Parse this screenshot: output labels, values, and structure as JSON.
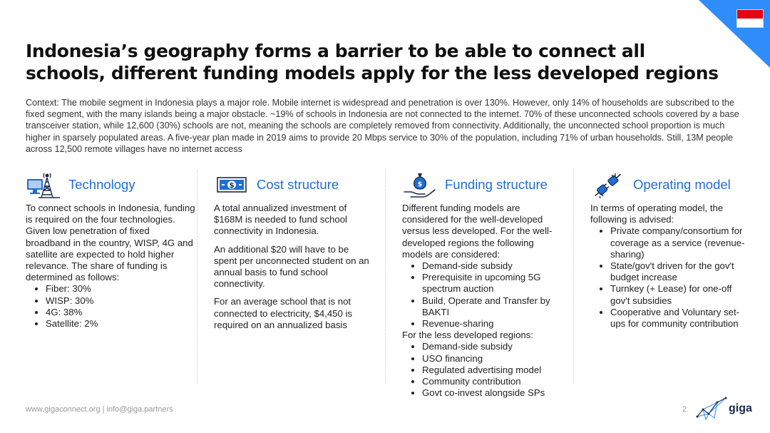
{
  "theme": {
    "accent": "#1f6fd1",
    "corner": "#2f8dfa",
    "flag_red": "#e70011",
    "flag_white": "#ffffff",
    "navy": "#1a2b4c"
  },
  "header": {
    "title": "Indonesia’s geography forms a barrier to be able to connect all schools, different funding models apply for the less developed regions"
  },
  "context": "Context: The mobile segment in Indonesia plays a major role. Mobile internet is widespread and penetration is over 130%. However, only 14% of households are subscribed to the fixed segment, with the many islands being a major obstacle. ~19% of schools in Indonesia are not connected to the internet. 70% of these unconnected schools covered by a base transceiver station, while 12,600 (30%) schools are not, meaning the schools are completely removed from connectivity. Additionally, the unconnected school proportion is much higher in sparsely populated areas. A five-year plan made in 2019 aims to provide 20 Mbps service to 30% of the population, including 71% of urban households. Still, 13M people across 12,500 remote villages have no internet access",
  "columns": {
    "technology": {
      "icon": "transmission-tower-icon",
      "title": "Technology",
      "intro": "To connect schools in Indonesia, funding is required on the four technologies. Given low penetration of fixed broadband in the country, WISP, 4G and satellite are expected to hold higher relevance. The share of funding is determined as follows:",
      "items": [
        "Fiber: 30%",
        "WISP: 30%",
        "4G: 38%",
        "Satellite: 2%"
      ]
    },
    "cost": {
      "icon": "banknote-icon",
      "title": "Cost structure",
      "p1": "A total annualized investment of $168M is needed to fund school connectivity in Indonesia.",
      "p2": "An additional $20 will have to be spent per unconnected student on an annual basis to fund school connectivity.",
      "p3": "For an average school that is not connected to electricity, $4,450 is required on an annualized basis"
    },
    "funding": {
      "icon": "hand-money-bag-icon",
      "title": "Funding structure",
      "intro": "Different funding models are considered for the well-developed versus less developed. For the well-developed regions the following models are considered:",
      "items1": [
        "Demand-side subsidy",
        "Prerequisite in upcoming 5G spectrum auction",
        "Build, Operate and Transfer by BAKTI",
        "Revenue-sharing"
      ],
      "mid": "For the less developed regions:",
      "items2": [
        "Demand-side subsidy",
        "USO financing",
        "Regulated advertising model",
        "Community contribution",
        "Govt co-invest alongside SPs"
      ]
    },
    "operating": {
      "icon": "plug-connect-icon",
      "title": "Operating model",
      "intro": "In terms of operating model, the following is advised:",
      "items": [
        "Private company/consortium for coverage as a service (revenue-sharing)",
        "State/gov't driven for the gov't budget increase",
        "Turnkey (+ Lease) for one-off gov't subsidies",
        "Cooperative and Voluntary set-ups for community contribution"
      ]
    }
  },
  "footer": {
    "links": "www.gigaconnect.org  |  info@giga.partners",
    "page": "2",
    "logo": "giga"
  }
}
